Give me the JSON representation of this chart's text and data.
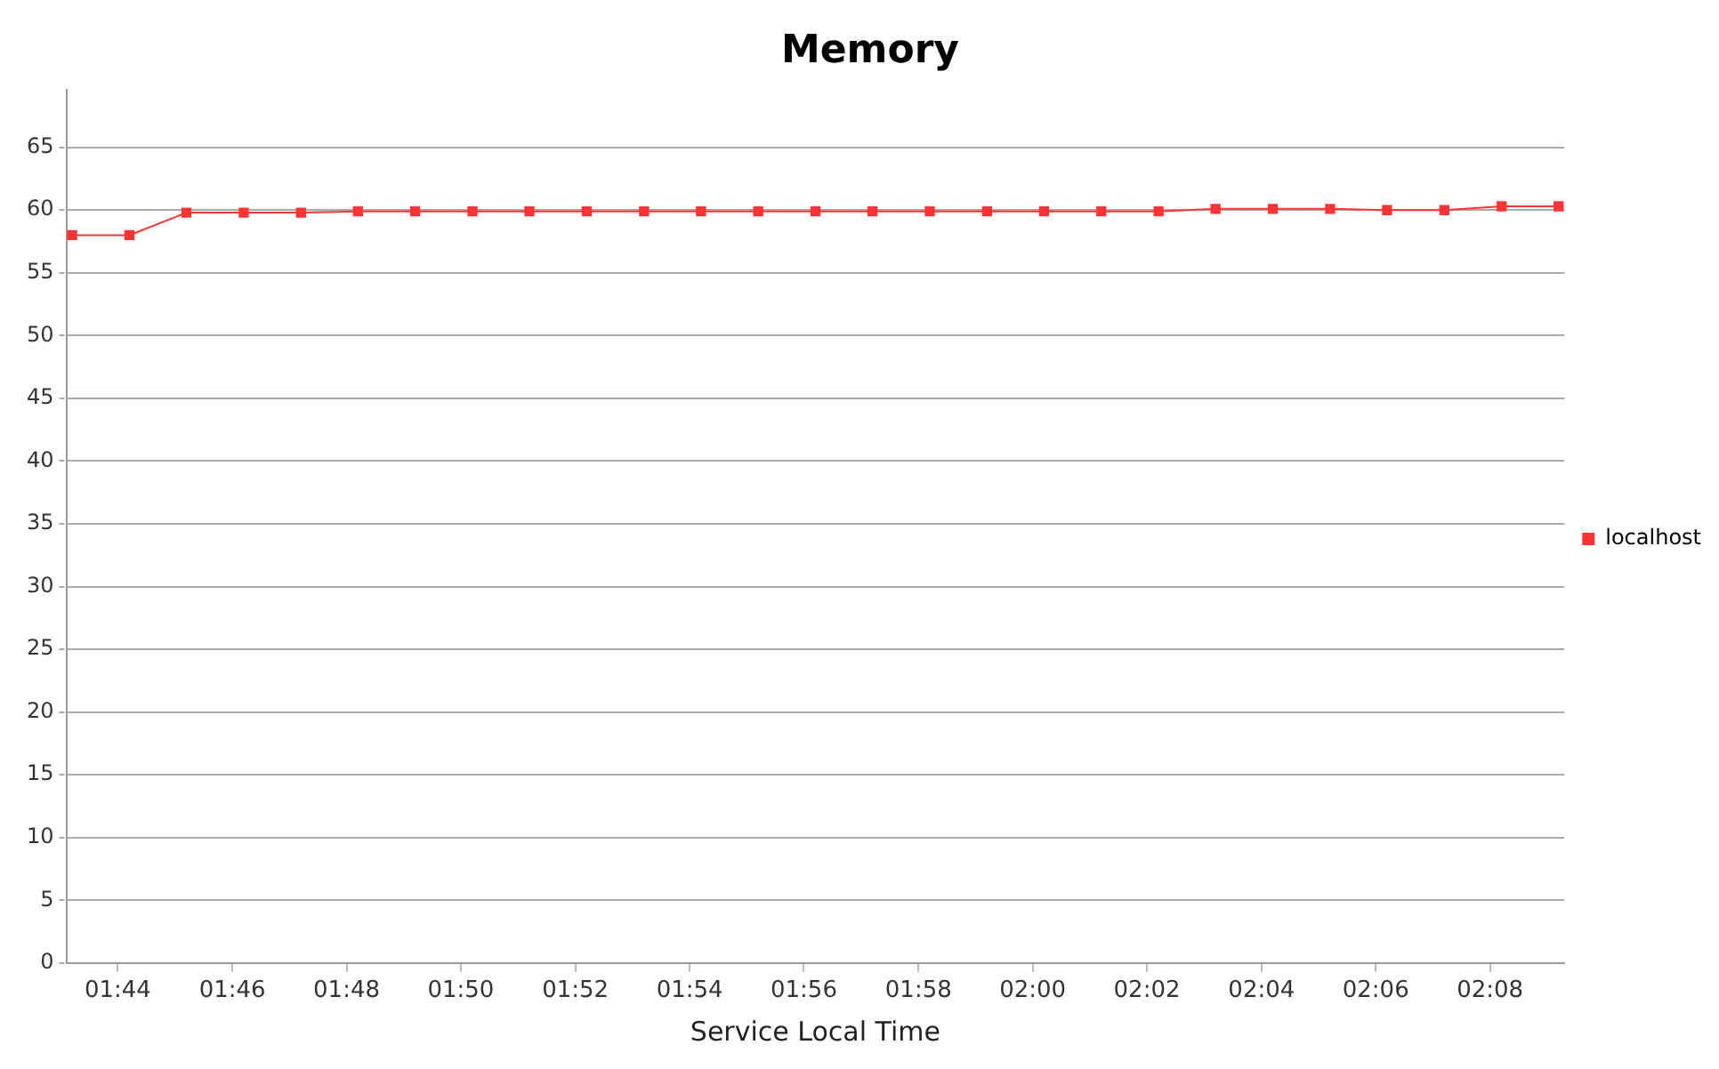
{
  "chart_data": {
    "type": "line",
    "title": "Memory",
    "xlabel": "Service Local Time",
    "x": [
      1.72,
      1.7367,
      1.7533,
      1.77,
      1.7867,
      1.8033,
      1.82,
      1.8367,
      1.8533,
      1.87,
      1.8867,
      1.9033,
      1.92,
      1.9367,
      1.9533,
      1.97,
      1.9867,
      2.0033,
      2.02,
      2.0367,
      2.0533,
      2.07,
      2.0867,
      2.1033,
      2.12,
      2.1367,
      2.1533
    ],
    "series": [
      {
        "name": "localhost",
        "color": "#ff3333",
        "values": [
          58.0,
          58.0,
          59.8,
          59.8,
          59.8,
          59.9,
          59.9,
          59.9,
          59.9,
          59.9,
          59.9,
          59.9,
          59.9,
          59.9,
          59.9,
          59.9,
          59.9,
          59.9,
          59.9,
          59.9,
          60.1,
          60.1,
          60.1,
          60.0,
          60.0,
          60.3,
          60.3
        ]
      }
    ],
    "xlim": [
      1.7183,
      2.155
    ],
    "xticks": [
      {
        "value": 1.7333,
        "label": "01:44"
      },
      {
        "value": 1.7667,
        "label": "01:46"
      },
      {
        "value": 1.8,
        "label": "01:48"
      },
      {
        "value": 1.8333,
        "label": "01:50"
      },
      {
        "value": 1.8667,
        "label": "01:52"
      },
      {
        "value": 1.9,
        "label": "01:54"
      },
      {
        "value": 1.9333,
        "label": "01:56"
      },
      {
        "value": 1.9667,
        "label": "01:58"
      },
      {
        "value": 2.0,
        "label": "02:00"
      },
      {
        "value": 2.0333,
        "label": "02:02"
      },
      {
        "value": 2.0667,
        "label": "02:04"
      },
      {
        "value": 2.1,
        "label": "02:06"
      },
      {
        "value": 2.1333,
        "label": "02:08"
      }
    ],
    "ylim": [
      0,
      69.6
    ],
    "yticks": [
      0,
      5,
      10,
      15,
      20,
      25,
      30,
      35,
      40,
      45,
      50,
      55,
      60,
      65
    ],
    "grid": "y",
    "legend": "right",
    "marker": "square",
    "line_style": "solid"
  }
}
